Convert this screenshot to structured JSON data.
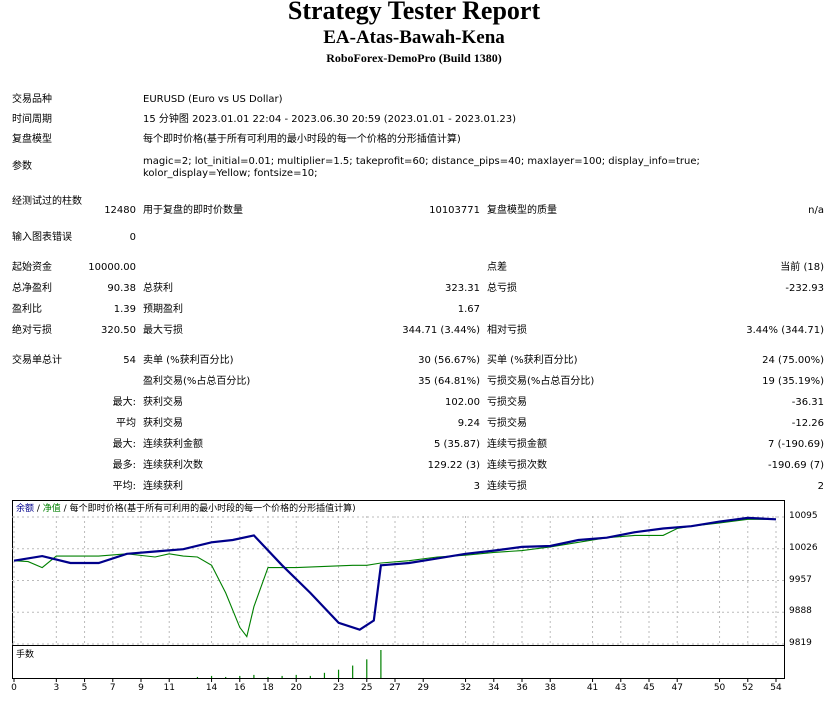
{
  "header": {
    "title": "Strategy Tester Report",
    "subtitle": "EA-Atas-Bawah-Kena",
    "server": "RoboForex-DemoPro (Build 1380)"
  },
  "settings": {
    "symbol_label": "交易品种",
    "symbol_value": "EURUSD (Euro vs US Dollar)",
    "period_label": "时间周期",
    "period_value": "15 分钟图 2023.01.01 22:04 - 2023.06.30 20:59 (2023.01.01 - 2023.01.23)",
    "model_label": "复盘模型",
    "model_value": "每个即时价格(基于所有可利用的最小时段的每一个价格的分形插值计算)",
    "params_label": "参数",
    "params_value": "magic=2; lot_initial=0.01; multiplier=1.5; takeprofit=60; distance_pips=40; maxlayer=100; display_info=true; kolor_display=Yellow; fontsize=10;"
  },
  "quality": {
    "bars_label": "经测试过的柱数",
    "bars_value": "12480",
    "ticks_label": "用于复盘的即时价数量",
    "ticks_value": "10103771",
    "quality_label": "复盘模型的质量",
    "quality_value": "n/a",
    "errors_label": "输入图表错误",
    "errors_value": "0"
  },
  "results": [
    {
      "l1": "起始资金",
      "v1": "10000.00",
      "l2": "",
      "v2": "",
      "l3": "点差",
      "v3": "当前 (18)"
    },
    {
      "l1": "总净盈利",
      "v1": "90.38",
      "l2": "总获利",
      "v2": "323.31",
      "l3": "总亏损",
      "v3": "-232.93"
    },
    {
      "l1": "盈利比",
      "v1": "1.39",
      "l2": "预期盈利",
      "v2": "1.67",
      "l3": "",
      "v3": ""
    },
    {
      "l1": "绝对亏损",
      "v1": "320.50",
      "l2": "最大亏损",
      "v2": "344.71 (3.44%)",
      "l3": "相对亏损",
      "v3": "3.44% (344.71)"
    }
  ],
  "trades": [
    {
      "l1": "交易单总计",
      "v1": "54",
      "l2": "卖单 (%获利百分比)",
      "v2": "30 (56.67%)",
      "l3": "买单 (%获利百分比)",
      "v3": "24 (75.00%)"
    },
    {
      "l1": "",
      "v1": "",
      "l2": "盈利交易(%占总百分比)",
      "v2": "35 (64.81%)",
      "l3": "亏损交易(%占总百分比)",
      "v3": "19 (35.19%)"
    },
    {
      "l1": "",
      "v1": "最大:",
      "l2": "获利交易",
      "v2": "102.00",
      "l3": "亏损交易",
      "v3": "-36.31"
    },
    {
      "l1": "",
      "v1": "平均",
      "l2": "获利交易",
      "v2": "9.24",
      "l3": "亏损交易",
      "v3": "-12.26"
    },
    {
      "l1": "",
      "v1": "最大:",
      "l2": "连续获利金额",
      "v2": "5 (35.87)",
      "l3": "连续亏损金额",
      "v3": "7 (-190.69)"
    },
    {
      "l1": "",
      "v1": "最多:",
      "l2": "连续获利次数",
      "v2": "129.22 (3)",
      "l3": "连续亏损次数",
      "v3": "-190.69 (7)"
    },
    {
      "l1": "",
      "v1": "平均:",
      "l2": "连续获利",
      "v2": "3",
      "l3": "连续亏损",
      "v3": "2"
    }
  ],
  "chart_data": {
    "type": "line",
    "legend": {
      "balance": "余额",
      "sep1": " / ",
      "equity": "净值",
      "sep2": " / ",
      "model": "每个即时价格(基于所有可利用的最小时段的每一个价格的分形插值计算)"
    },
    "colors": {
      "balance": "#00008b",
      "equity": "#008000",
      "volume": "#008000"
    },
    "ylim": [
      9810,
      10115
    ],
    "yticks": [
      "10095",
      "10026",
      "9957",
      "9888",
      "9819"
    ],
    "ytick_values": [
      10095,
      10026,
      9957,
      9888,
      9819
    ],
    "xlim": [
      0,
      55
    ],
    "xticks": [
      "0",
      "3",
      "5",
      "7",
      "9",
      "11",
      "14",
      "16",
      "18",
      "20",
      "23",
      "25",
      "27",
      "29",
      "32",
      "34",
      "36",
      "38",
      "41",
      "43",
      "45",
      "47",
      "50",
      "52",
      "54"
    ],
    "xtick_values": [
      0,
      3,
      5,
      7,
      9,
      11,
      14,
      16,
      18,
      20,
      23,
      25,
      27,
      29,
      32,
      34,
      36,
      38,
      41,
      43,
      45,
      47,
      50,
      52,
      54
    ],
    "series": [
      {
        "name": "余额",
        "x": [
          0,
          2,
          4,
          6,
          8,
          10,
          12,
          14,
          15.5,
          17,
          19,
          21,
          23,
          24.5,
          25.5,
          26,
          28,
          30,
          32,
          34,
          36,
          38,
          40,
          42,
          44,
          46,
          48,
          50,
          52,
          54
        ],
        "y": [
          10000,
          10010,
          9995,
          9995,
          10015,
          10020,
          10025,
          10040,
          10045,
          10055,
          9990,
          9930,
          9865,
          9850,
          9870,
          9990,
          9995,
          10005,
          10015,
          10022,
          10030,
          10032,
          10045,
          10050,
          10062,
          10070,
          10075,
          10085,
          10093,
          10090
        ]
      },
      {
        "name": "净值",
        "x": [
          0,
          1,
          2,
          3,
          4,
          6,
          8,
          10,
          11,
          12,
          13,
          14,
          15,
          16,
          16.5,
          17,
          18,
          20,
          24,
          25,
          26,
          28,
          30,
          32,
          34,
          36,
          38,
          40,
          42,
          44,
          46,
          47,
          48,
          50,
          52,
          54
        ],
        "y": [
          10000,
          9998,
          9985,
          10010,
          10010,
          10010,
          10015,
          10008,
          10015,
          10010,
          10008,
          9990,
          9930,
          9855,
          9835,
          9900,
          9985,
          9985,
          9990,
          9990,
          9995,
          10000,
          10008,
          10012,
          10018,
          10022,
          10030,
          10040,
          10050,
          10055,
          10055,
          10070,
          10075,
          10082,
          10090,
          10090
        ]
      }
    ],
    "volume_label": "手数",
    "volume_x": [
      13,
      14,
      15,
      16,
      17,
      18,
      19,
      20,
      21,
      22,
      23,
      24,
      25,
      26
    ],
    "volume_y": [
      0.01,
      0.02,
      0.01,
      0.02,
      0.03,
      0.01,
      0.02,
      0.03,
      0.02,
      0.05,
      0.08,
      0.12,
      0.18,
      0.27
    ]
  }
}
